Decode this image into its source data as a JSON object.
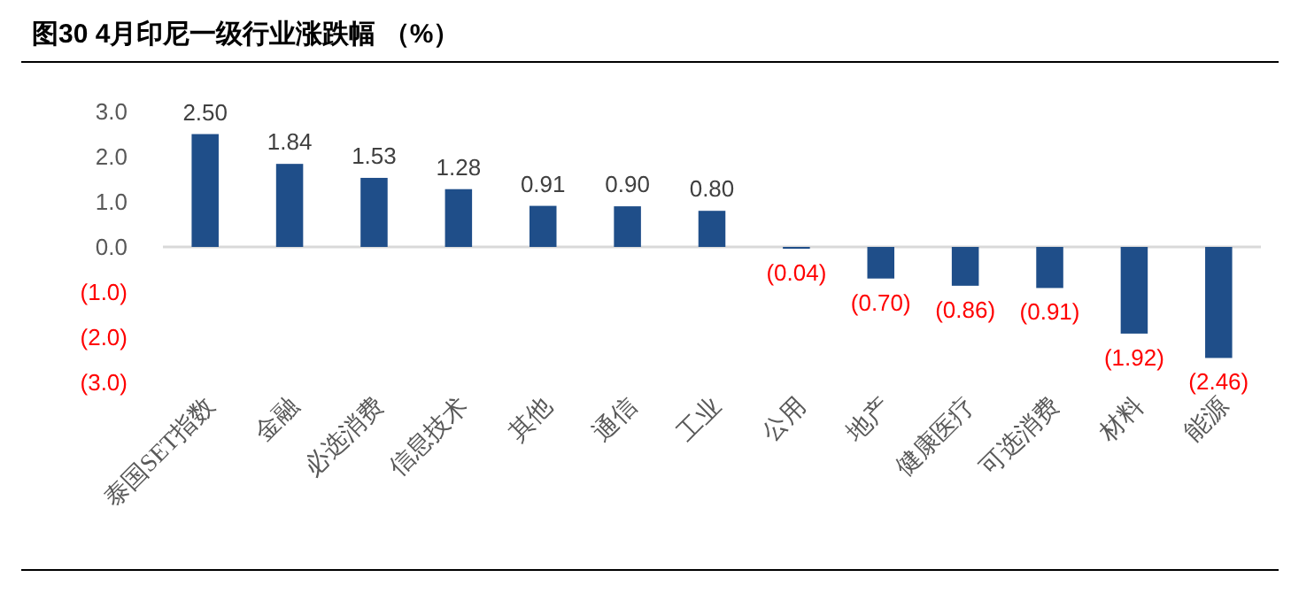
{
  "chart_data": {
    "type": "bar",
    "title": "图30 4月印尼一级行业涨跌幅 （%）",
    "categories": [
      "泰国SET指数",
      "金融",
      "必选消费",
      "信息技术",
      "其他",
      "通信",
      "工业",
      "公用",
      "地产",
      "健康医疗",
      "可选消费",
      "材料",
      "能源"
    ],
    "values": [
      2.5,
      1.84,
      1.53,
      1.28,
      0.91,
      0.9,
      0.8,
      -0.04,
      -0.7,
      -0.86,
      -0.91,
      -1.92,
      -2.46
    ],
    "value_labels": [
      "2.50",
      "1.84",
      "1.53",
      "1.28",
      "0.91",
      "0.90",
      "0.80",
      "(0.04)",
      "(0.70)",
      "(0.86)",
      "(0.91)",
      "(1.92)",
      "(2.46)"
    ],
    "color": "#1f4e89",
    "ylim": [
      -3,
      3
    ],
    "yticks": [
      {
        "value": 3,
        "label": "3.0"
      },
      {
        "value": 2,
        "label": "2.0"
      },
      {
        "value": 1,
        "label": "1.0"
      },
      {
        "value": 0,
        "label": "0.0"
      },
      {
        "value": -1,
        "label": "(1.0)"
      },
      {
        "value": -2,
        "label": "(2.0)"
      },
      {
        "value": -3,
        "label": "(3.0)"
      }
    ]
  }
}
